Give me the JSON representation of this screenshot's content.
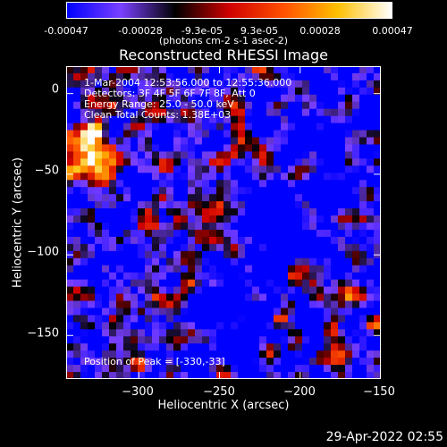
{
  "colorbar": {
    "ticks": [
      "-0.00047",
      "-0.00028",
      "-9.3e-05",
      "9.3e-05",
      "0.00028",
      "0.00047"
    ],
    "unit_text": "(photons cm-2 s-1 asec-2)",
    "colors": [
      "#0000ff",
      "#7a40ff",
      "#000000",
      "#d00000",
      "#ff5000",
      "#ffc000",
      "#ffffff"
    ]
  },
  "chart_data": {
    "type": "heatmap",
    "title": "Reconstructed RHESSI Image",
    "xlabel": "Heliocentric X (arcsec)",
    "ylabel": "Heliocentric Y (arcsec)",
    "xlim": [
      -345,
      -150
    ],
    "ylim": [
      -177,
      17
    ],
    "xticks": [
      -300,
      -250,
      -200,
      -150
    ],
    "yticks": [
      0,
      -50,
      -100,
      -150
    ],
    "xtick_labels": [
      "−300",
      "−250",
      "−200",
      "−150"
    ],
    "ytick_labels": [
      "0",
      "−50",
      "−100",
      "−150"
    ],
    "annotations": {
      "line1": "1-Mar-2004 12:53:56.000 to 12:55:36.000",
      "line2": "Detectors: 3F 4F 5F 6F 7F 8F, Att 0",
      "line3": "Energy Range: 25.0 - 50.0 keV",
      "line4": "Clean     Total Counts: 1.38E+03",
      "peak": "Position of Peak = [-330,-33]"
    },
    "peak_position": [
      -330,
      -33
    ]
  },
  "footer": {
    "timestamp": "29-Apr-2022 02:55"
  }
}
